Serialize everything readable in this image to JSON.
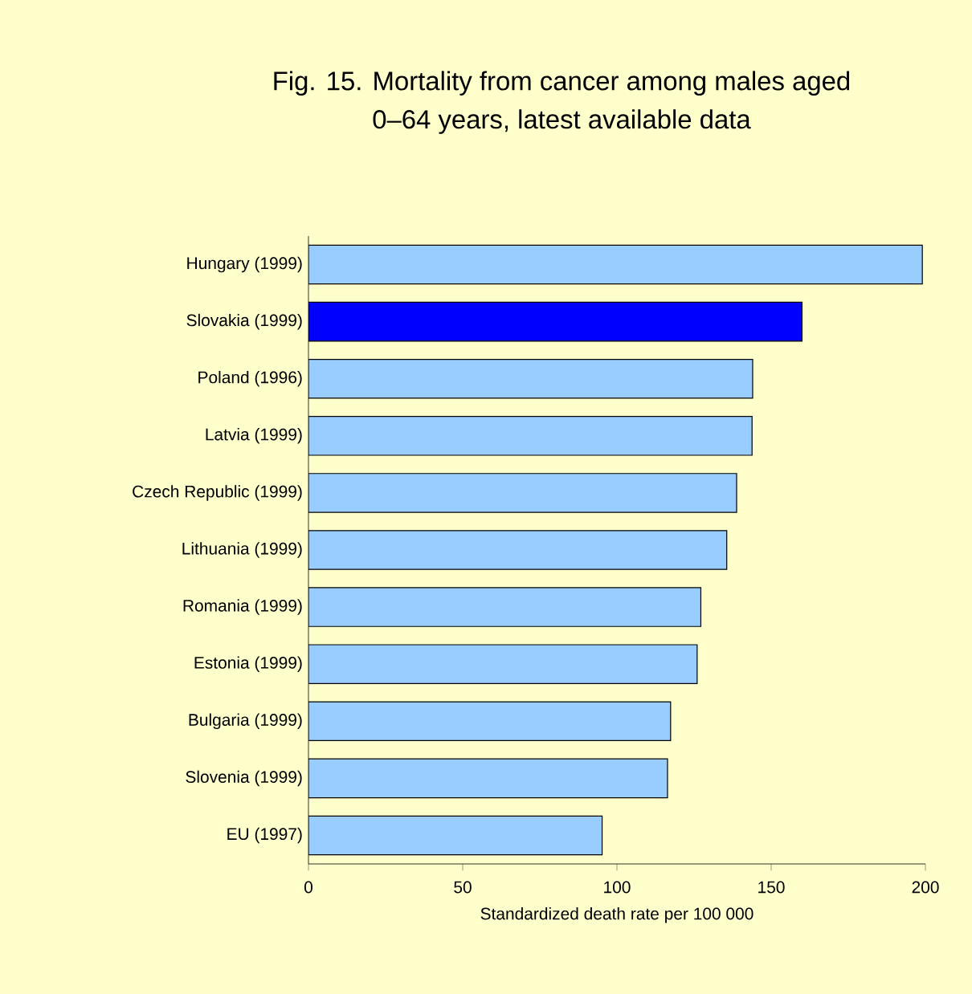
{
  "chart_data": {
    "type": "bar",
    "orientation": "horizontal",
    "title": "Fig. 15. Mortality from cancer among males aged 0–64 years, latest available data",
    "xlabel": "Standardized death rate per 100 000",
    "categories": [
      "Hungary (1999)",
      "Slovakia (1999)",
      "Poland (1996)",
      "Latvia (1999)",
      "Czech Republic (1999)",
      "Lithuania (1999)",
      "Romania (1999)",
      "Estonia (1999)",
      "Bulgaria (1999)",
      "Slovenia (1999)",
      "EU (1997)"
    ],
    "values": [
      199,
      160,
      144,
      143.8,
      138.8,
      135.6,
      127.2,
      126,
      117.4,
      116.4,
      95.2
    ],
    "colors": [
      "#99ccff",
      "#0000ff",
      "#99ccff",
      "#99ccff",
      "#99ccff",
      "#99ccff",
      "#99ccff",
      "#99ccff",
      "#99ccff",
      "#99ccff",
      "#99ccff"
    ],
    "xlim": [
      0,
      200
    ],
    "xticks": [
      0,
      50,
      100,
      150,
      200
    ],
    "grid": false
  }
}
